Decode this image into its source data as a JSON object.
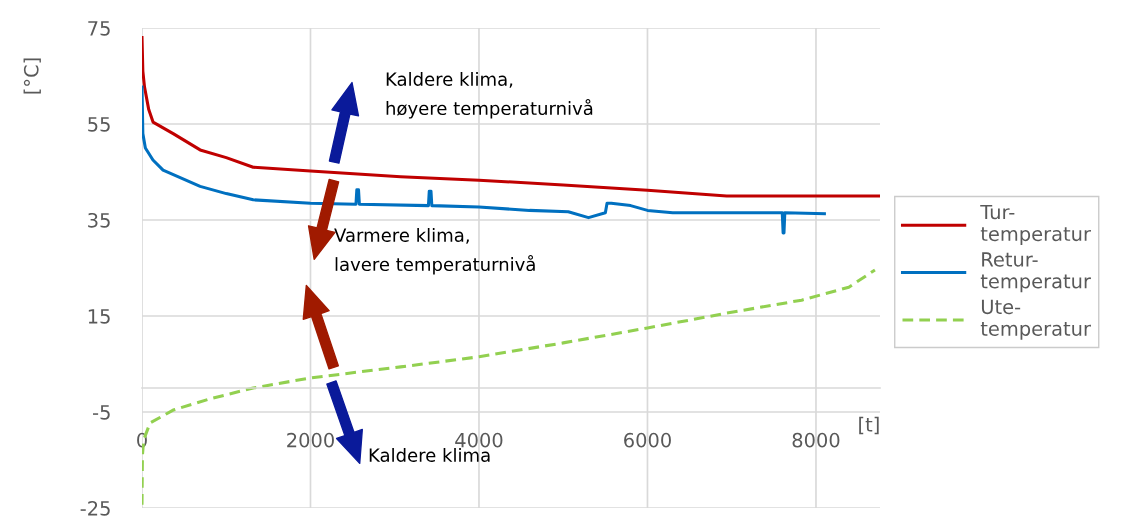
{
  "chart_data": {
    "type": "line",
    "xlabel": "[t]",
    "ylabel": "[°C]",
    "xlim": [
      0,
      8760
    ],
    "xticks": [
      0,
      2000,
      4000,
      6000,
      8000
    ],
    "ylim": [
      -25,
      75
    ],
    "yticks": [
      -25,
      -5,
      15,
      35,
      55,
      75
    ],
    "grid": true,
    "legend": "right",
    "line_style": "solid",
    "series": [
      {
        "name": "Tur-\ntemperatur",
        "color": "#c00000",
        "x": [
          0,
          10,
          30,
          80,
          131,
          370,
          690,
          1000,
          1320,
          2000,
          3070,
          4000,
          5000,
          6000,
          6940,
          8000,
          8760
        ],
        "values": [
          73,
          66,
          62.7,
          58,
          55.4,
          53,
          49.6,
          48,
          46,
          45.2,
          44,
          43.3,
          42.3,
          41.2,
          40,
          40,
          40
        ]
      },
      {
        "name": "Retur-\ntemperatur",
        "color": "#0070c0",
        "x": [
          0,
          10,
          40,
          130,
          250,
          690,
          1000,
          1320,
          2000,
          2540,
          2550,
          2570,
          2580,
          3400,
          3410,
          3430,
          3440,
          4000,
          4600,
          5060,
          5300,
          5500,
          5520,
          5570,
          5800,
          6000,
          6300,
          6940,
          7600,
          7610,
          7620,
          7630,
          8100
        ],
        "values": [
          62.7,
          53,
          50,
          47.5,
          45.4,
          42,
          40.5,
          39.2,
          38.5,
          38.3,
          41.3,
          41.3,
          38.3,
          38,
          41,
          41,
          38,
          37.7,
          37,
          36.7,
          35.5,
          36.5,
          38.5,
          38.5,
          38,
          37,
          36.5,
          36.5,
          36.5,
          32.3,
          32.3,
          36.5,
          36.3
        ]
      },
      {
        "name": "Ute-\ntemperatur",
        "color": "#92d050",
        "line_style": "dashed",
        "x": [
          0,
          5,
          20,
          95,
          370,
          800,
          1320,
          2000,
          3070,
          4000,
          5000,
          6000,
          6940,
          7830,
          8390,
          8700
        ],
        "values": [
          -24.3,
          -14,
          -10.8,
          -7.3,
          -4.6,
          -2.3,
          0,
          2.1,
          4.4,
          6.5,
          9.4,
          12.5,
          15.6,
          18.3,
          21,
          24.6
        ]
      }
    ],
    "annotations": [
      "Kaldere klima,\nhøyere temperaturnivå",
      "Varmere klima,\nlavere temperaturnivå",
      "Kaldere klima"
    ]
  }
}
